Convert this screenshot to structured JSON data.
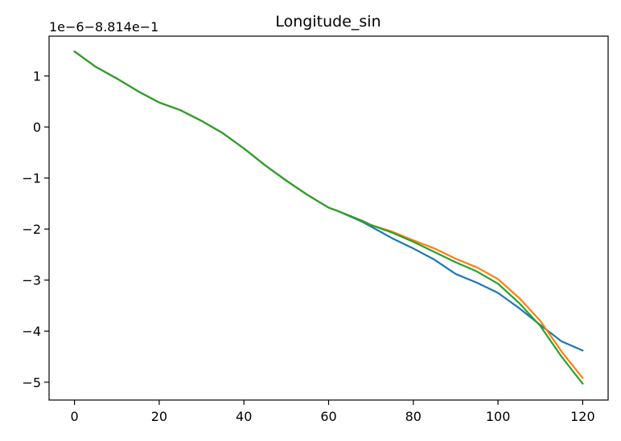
{
  "chart_data": {
    "type": "line",
    "title": "Longitude_sin",
    "offset_label": "1e−6−8.814e−1",
    "xlabel": "",
    "ylabel": "",
    "xlim": [
      -6,
      126
    ],
    "ylim": [
      -5.35,
      1.78
    ],
    "xticks": [
      0,
      20,
      40,
      60,
      80,
      100,
      120
    ],
    "xtick_labels": [
      "0",
      "20",
      "40",
      "60",
      "80",
      "100",
      "120"
    ],
    "yticks": [
      1,
      0,
      -1,
      -2,
      -3,
      -4,
      -5
    ],
    "ytick_labels": [
      "1",
      "0",
      "−1",
      "−2",
      "−3",
      "−4",
      "−5"
    ],
    "grid": false,
    "series": [
      {
        "color": "#1f77b4",
        "x": [
          0,
          5,
          10,
          15,
          20,
          25,
          30,
          35,
          40,
          45,
          50,
          55,
          60,
          62,
          65,
          68,
          70,
          75,
          80,
          85,
          90,
          95,
          100,
          105,
          110,
          115,
          120
        ],
        "y": [
          1.48,
          1.18,
          0.95,
          0.7,
          0.48,
          0.33,
          0.12,
          -0.12,
          -0.42,
          -0.75,
          -1.05,
          -1.33,
          -1.58,
          -1.64,
          -1.75,
          -1.86,
          -1.95,
          -2.18,
          -2.38,
          -2.6,
          -2.88,
          -3.05,
          -3.25,
          -3.55,
          -3.88,
          -4.2,
          -4.38
        ]
      },
      {
        "color": "#ff7f0e",
        "x": [
          0,
          5,
          10,
          15,
          20,
          25,
          30,
          35,
          40,
          45,
          50,
          55,
          60,
          62,
          65,
          68,
          70,
          75,
          80,
          85,
          90,
          95,
          100,
          105,
          110,
          115,
          120
        ],
        "y": [
          1.48,
          1.18,
          0.95,
          0.7,
          0.48,
          0.33,
          0.12,
          -0.12,
          -0.42,
          -0.75,
          -1.05,
          -1.33,
          -1.58,
          -1.64,
          -1.74,
          -1.84,
          -1.92,
          -2.05,
          -2.22,
          -2.38,
          -2.58,
          -2.75,
          -2.98,
          -3.35,
          -3.8,
          -4.4,
          -4.92
        ]
      },
      {
        "color": "#2ca02c",
        "x": [
          0,
          5,
          10,
          15,
          20,
          25,
          30,
          35,
          40,
          45,
          50,
          55,
          60,
          62,
          65,
          68,
          70,
          75,
          80,
          85,
          90,
          95,
          100,
          105,
          110,
          115,
          120
        ],
        "y": [
          1.48,
          1.18,
          0.95,
          0.7,
          0.48,
          0.33,
          0.12,
          -0.12,
          -0.42,
          -0.75,
          -1.05,
          -1.33,
          -1.58,
          -1.64,
          -1.74,
          -1.84,
          -1.92,
          -2.07,
          -2.25,
          -2.45,
          -2.65,
          -2.83,
          -3.07,
          -3.45,
          -3.9,
          -4.5,
          -5.03
        ]
      }
    ]
  }
}
